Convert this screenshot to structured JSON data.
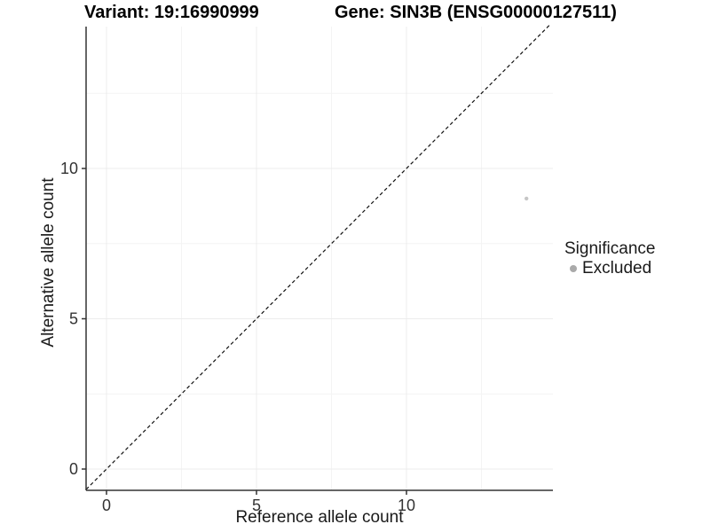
{
  "chart_data": {
    "type": "scatter",
    "titles": {
      "left": "Variant: 19:16990999",
      "right": "Gene: SIN3B (ENSG00000127511)"
    },
    "xlabel": "Reference allele count",
    "ylabel": "Alternative allele count",
    "xlim": [
      -0.68,
      14.88
    ],
    "ylim": [
      -0.71,
      14.76
    ],
    "x_major_ticks": [
      0,
      5,
      10
    ],
    "y_major_ticks": [
      0,
      5,
      10
    ],
    "x_minor_ticks": [
      2.5,
      7.5,
      12.5
    ],
    "y_minor_ticks": [
      2.5,
      7.5,
      12.5
    ],
    "grid": true,
    "identity_line": {
      "slope": 1,
      "intercept": 0,
      "style": "dashed",
      "color": "#111111"
    },
    "series": [
      {
        "name": "Excluded",
        "color": "#c6c6c6",
        "points": [
          {
            "x": 14,
            "y": 9
          }
        ]
      }
    ],
    "legend": {
      "position": "right",
      "title": "Significance",
      "entries": [
        {
          "label": "Excluded",
          "color": "#aaaaaa"
        }
      ]
    }
  },
  "colors": {
    "background": "#ffffff",
    "axis_line": "#333333",
    "tick_label": "#333333",
    "grid_major": "#ececec",
    "grid_minor": "#f4f4f4"
  }
}
